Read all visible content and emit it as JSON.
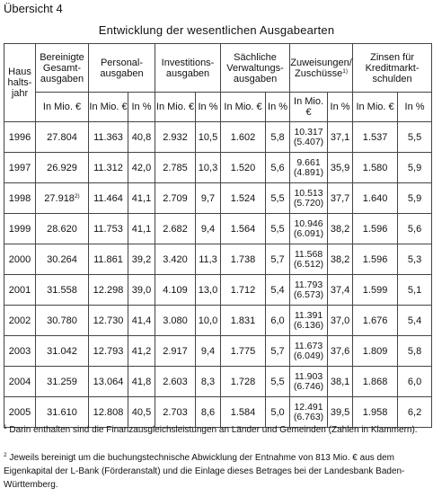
{
  "header": "Übersicht 4",
  "title": "Entwicklung der wesentlichen Ausgabearten",
  "columns": {
    "year": "Haus halts- jahr",
    "bereinigte": "Bereinigte Gesamt- ausgaben",
    "personal": "Personal- ausgaben",
    "invest": "Investitions- ausgaben",
    "saechlich": "Sächliche Verwaltungs- ausgaben",
    "zuweisungen": "Zuweisungen/ Zuschüsse",
    "zuweisungen_sup": "1)",
    "zinsen": "Zinsen für Kreditmarkt- schulden"
  },
  "units": {
    "mio": "In Mio. €",
    "pct": "In %"
  },
  "rows": [
    {
      "year": "1996",
      "bereinigte": "27.804",
      "bereinigte_sup": "",
      "personal": "11.363",
      "personal_pct": "40,8",
      "invest": "2.932",
      "invest_pct": "10,5",
      "saechlich": "1.602",
      "saechlich_pct": "5,8",
      "zuw_main": "10.317",
      "zuw_sub": "(5.407)",
      "zuw_pct": "37,1",
      "zinsen": "1.537",
      "zinsen_pct": "5,5"
    },
    {
      "year": "1997",
      "bereinigte": "26.929",
      "bereinigte_sup": "",
      "personal": "11.312",
      "personal_pct": "42,0",
      "invest": "2.785",
      "invest_pct": "10,3",
      "saechlich": "1.520",
      "saechlich_pct": "5,6",
      "zuw_main": "9.661",
      "zuw_sub": "(4.891)",
      "zuw_pct": "35,9",
      "zinsen": "1.580",
      "zinsen_pct": "5,9"
    },
    {
      "year": "1998",
      "bereinigte": "27.918",
      "bereinigte_sup": "2)",
      "personal": "11.464",
      "personal_pct": "41,1",
      "invest": "2.709",
      "invest_pct": "9,7",
      "saechlich": "1.524",
      "saechlich_pct": "5,5",
      "zuw_main": "10.513",
      "zuw_sub": "(5.720)",
      "zuw_pct": "37,7",
      "zinsen": "1.640",
      "zinsen_pct": "5,9"
    },
    {
      "year": "1999",
      "bereinigte": "28.620",
      "bereinigte_sup": "",
      "personal": "11.753",
      "personal_pct": "41,1",
      "invest": "2.682",
      "invest_pct": "9,4",
      "saechlich": "1.564",
      "saechlich_pct": "5,5",
      "zuw_main": "10.946",
      "zuw_sub": "(6.091)",
      "zuw_pct": "38,2",
      "zinsen": "1.596",
      "zinsen_pct": "5,6"
    },
    {
      "year": "2000",
      "bereinigte": "30.264",
      "bereinigte_sup": "",
      "personal": "11.861",
      "personal_pct": "39,2",
      "invest": "3.420",
      "invest_pct": "11,3",
      "saechlich": "1.738",
      "saechlich_pct": "5,7",
      "zuw_main": "11.568",
      "zuw_sub": "(6.512)",
      "zuw_pct": "38,2",
      "zinsen": "1.596",
      "zinsen_pct": "5,3"
    },
    {
      "year": "2001",
      "bereinigte": "31.558",
      "bereinigte_sup": "",
      "personal": "12.298",
      "personal_pct": "39,0",
      "invest": "4.109",
      "invest_pct": "13,0",
      "saechlich": "1.712",
      "saechlich_pct": "5,4",
      "zuw_main": "11.793",
      "zuw_sub": "(6.573)",
      "zuw_pct": "37,4",
      "zinsen": "1.599",
      "zinsen_pct": "5,1"
    },
    {
      "year": "2002",
      "bereinigte": "30.780",
      "bereinigte_sup": "",
      "personal": "12.730",
      "personal_pct": "41,4",
      "invest": "3.080",
      "invest_pct": "10,0",
      "saechlich": "1.831",
      "saechlich_pct": "6,0",
      "zuw_main": "11.391",
      "zuw_sub": "(6.136)",
      "zuw_pct": "37,0",
      "zinsen": "1.676",
      "zinsen_pct": "5,4"
    },
    {
      "year": "2003",
      "bereinigte": "31.042",
      "bereinigte_sup": "",
      "personal": "12.793",
      "personal_pct": "41,2",
      "invest": "2.917",
      "invest_pct": "9,4",
      "saechlich": "1.775",
      "saechlich_pct": "5,7",
      "zuw_main": "11.673",
      "zuw_sub": "(6.049)",
      "zuw_pct": "37,6",
      "zinsen": "1.809",
      "zinsen_pct": "5,8"
    },
    {
      "year": "2004",
      "bereinigte": "31.259",
      "bereinigte_sup": "",
      "personal": "13.064",
      "personal_pct": "41,8",
      "invest": "2.603",
      "invest_pct": "8,3",
      "saechlich": "1.728",
      "saechlich_pct": "5,5",
      "zuw_main": "11.903",
      "zuw_sub": "(6.746)",
      "zuw_pct": "38,1",
      "zinsen": "1.868",
      "zinsen_pct": "6,0"
    },
    {
      "year": "2005",
      "bereinigte": "31.610",
      "bereinigte_sup": "",
      "personal": "12.808",
      "personal_pct": "40,5",
      "invest": "2.703",
      "invest_pct": "8,6",
      "saechlich": "1.584",
      "saechlich_pct": "5,0",
      "zuw_main": "12.491",
      "zuw_sub": "(6.763)",
      "zuw_pct": "39,5",
      "zinsen": "1.958",
      "zinsen_pct": "6,2"
    }
  ],
  "footnotes": {
    "fn1_mark": "1",
    "fn1_text": " Darin enthalten sind die Finanzausgleichsleistungen an Länder und Gemeinden (Zahlen in Klammern).",
    "fn2_mark": "2",
    "fn2_text": " Jeweils bereinigt um die buchungstechnische Abwicklung der Entnahme von 813 Mio. € aus dem Eigenkapital der L-Bank (Förderanstalt) und die Einlage dieses Betrages bei der Landesbank Baden-Württemberg."
  }
}
